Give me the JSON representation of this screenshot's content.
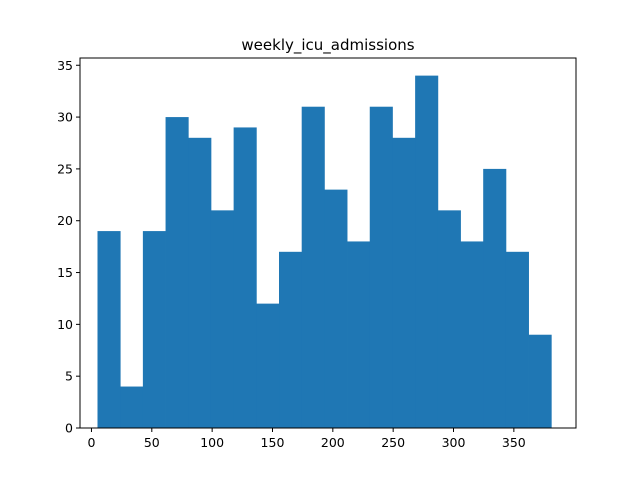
{
  "chart_data": {
    "type": "bar",
    "title": "weekly_icu_admissions",
    "xlabel": "",
    "ylabel": "",
    "bar_color": "#1f77b4",
    "xlim": [
      -9.5,
      401.5
    ],
    "ylim": [
      0,
      35.7
    ],
    "bin_edges": [
      5.0,
      23.8,
      42.6,
      61.4,
      80.2,
      99.0,
      117.8,
      136.6,
      155.4,
      174.2,
      193.0,
      211.8,
      230.6,
      249.4,
      268.2,
      287.0,
      305.8,
      324.6,
      343.4,
      362.2,
      381.0
    ],
    "values": [
      19,
      4,
      19,
      30,
      28,
      21,
      29,
      12,
      17,
      31,
      23,
      18,
      31,
      28,
      34,
      21,
      18,
      25,
      17,
      9
    ],
    "x_ticks": [
      0,
      50,
      100,
      150,
      200,
      250,
      300,
      350
    ],
    "y_ticks": [
      0,
      5,
      10,
      15,
      20,
      25,
      30,
      35
    ],
    "grid": false,
    "legend": "none"
  }
}
